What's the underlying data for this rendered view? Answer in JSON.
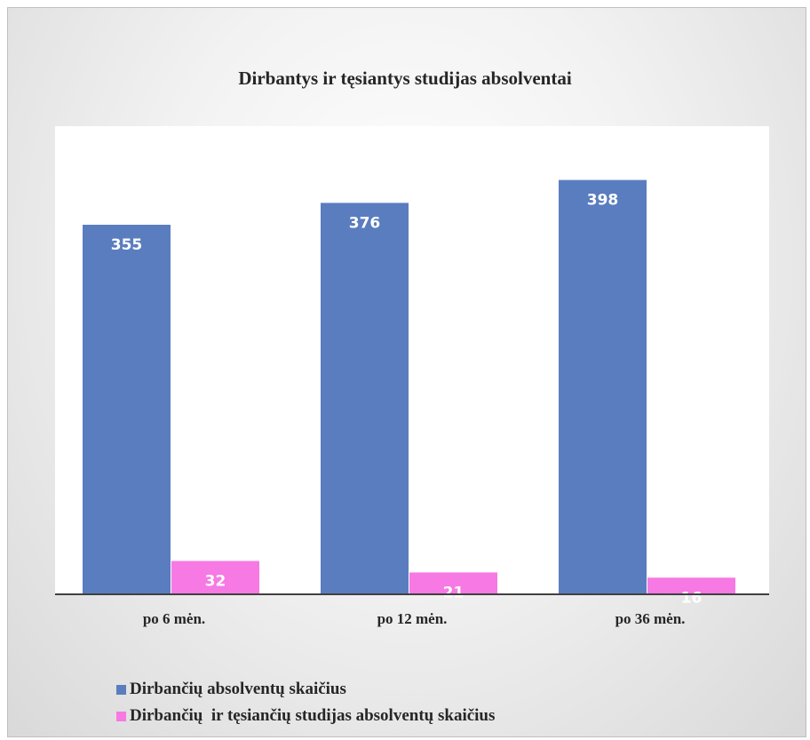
{
  "chart_data": {
    "type": "bar",
    "title": "Dirbantys ir tęsiantys studijas absolventai",
    "categories": [
      "po 6 mėn.",
      "po 12 mėn.",
      "po 36 mėn."
    ],
    "series": [
      {
        "name": "Dirbančių absolventų skaičius",
        "values": [
          355,
          376,
          398
        ],
        "color": "#5a7dbf"
      },
      {
        "name": "Dirbančių  ir tęsiančių studijas absolventų skaičius",
        "values": [
          32,
          21,
          16
        ],
        "color": "#f779e3"
      }
    ],
    "ylim": [
      0,
      450
    ],
    "grid": false,
    "legend_position": "bottom-left",
    "data_labels": true
  }
}
